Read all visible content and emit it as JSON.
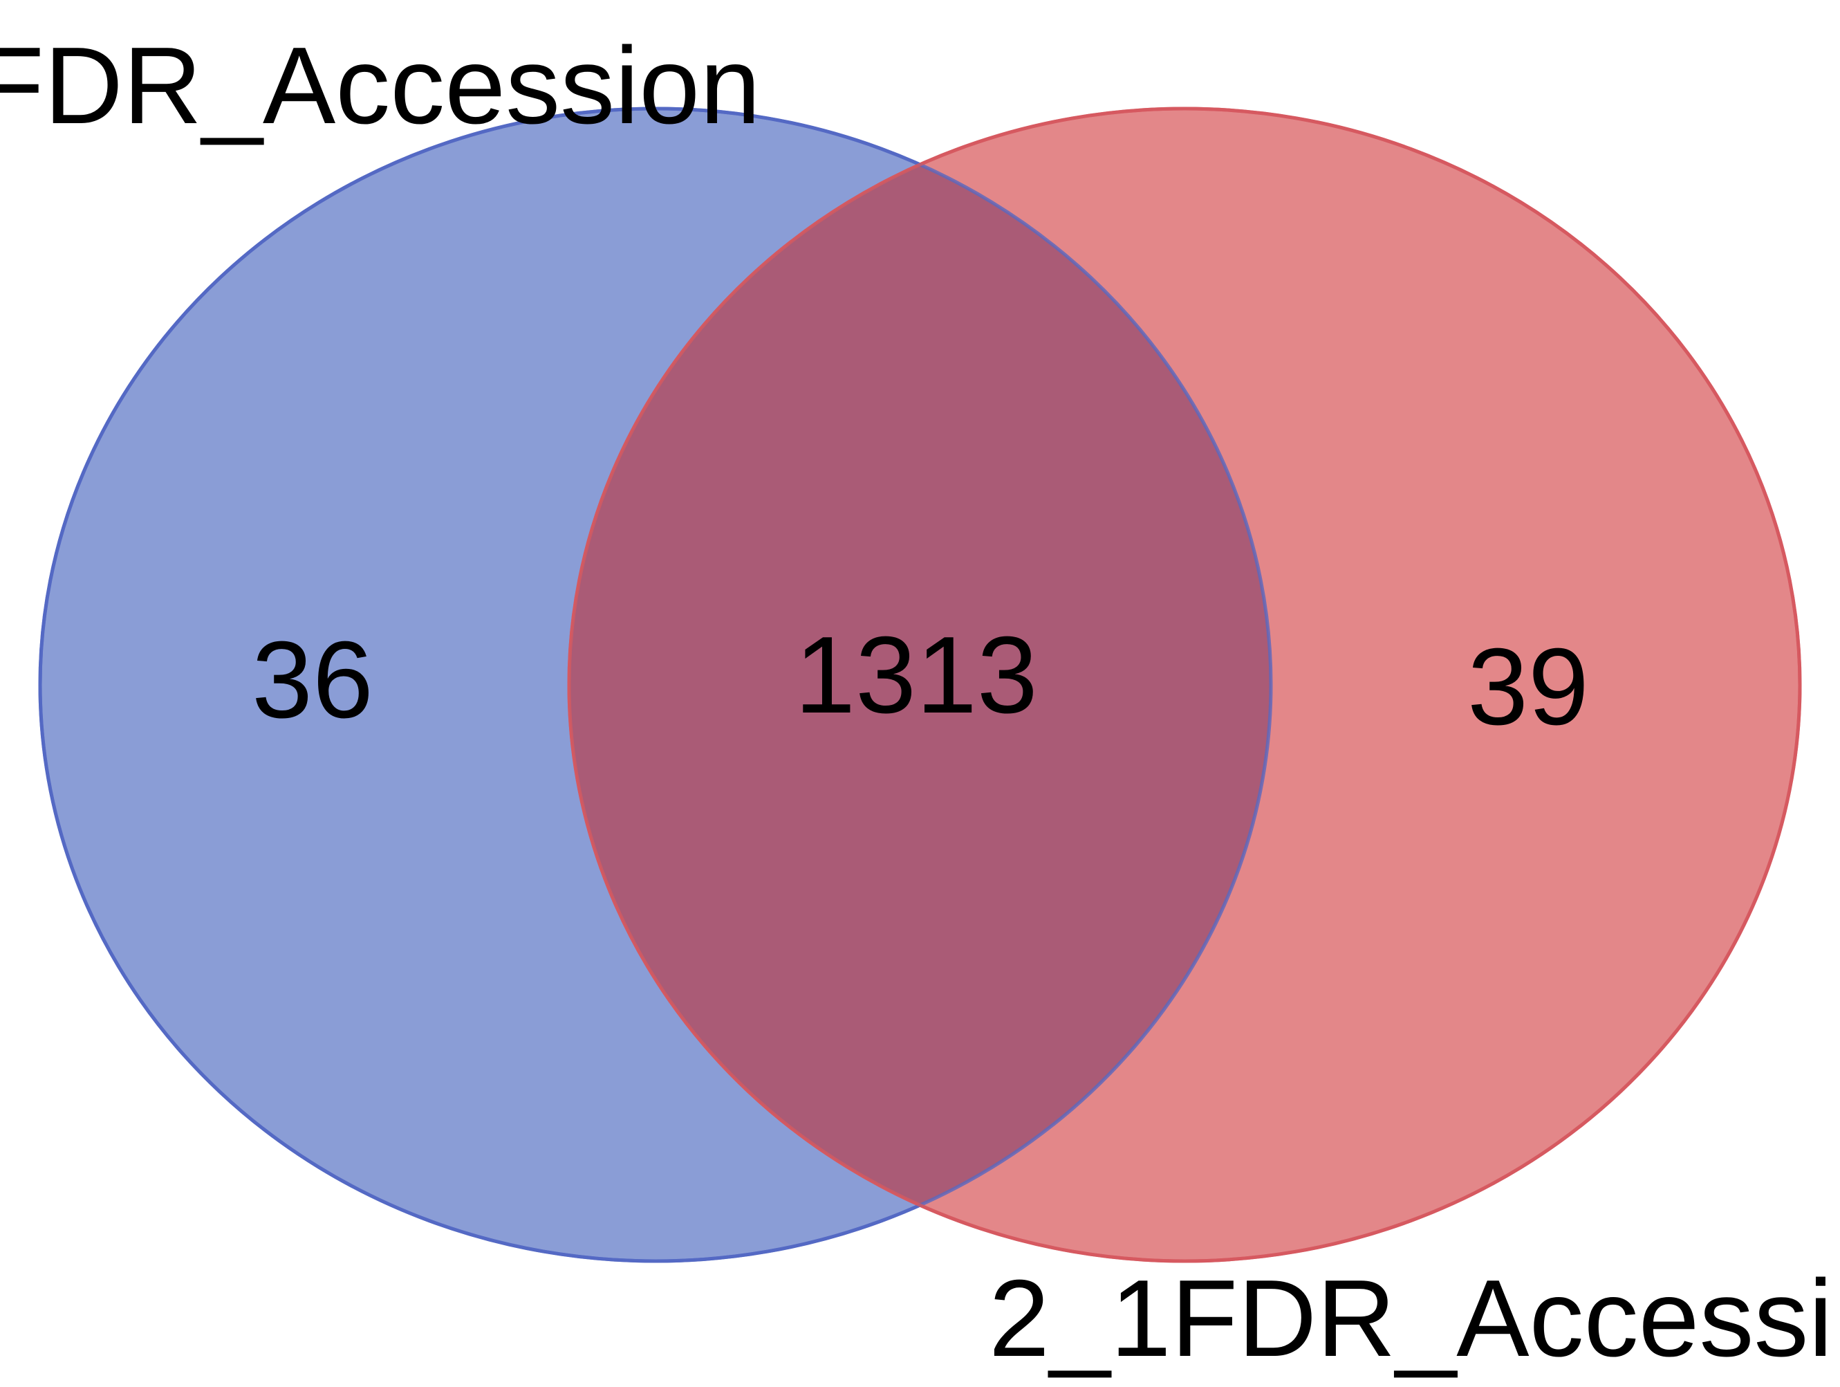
{
  "venn": {
    "sets": [
      {
        "label": "FDR_Accession",
        "fill": "#8a9dd6",
        "stroke": "#5469c4"
      },
      {
        "label": "2_1FDR_Accessi",
        "fill": "#e07a7c",
        "stroke": "#d65a60"
      }
    ],
    "regions": {
      "only_a": "36",
      "intersection": "1313",
      "only_b": "39"
    },
    "intersection_fill": "#aa5b76"
  }
}
